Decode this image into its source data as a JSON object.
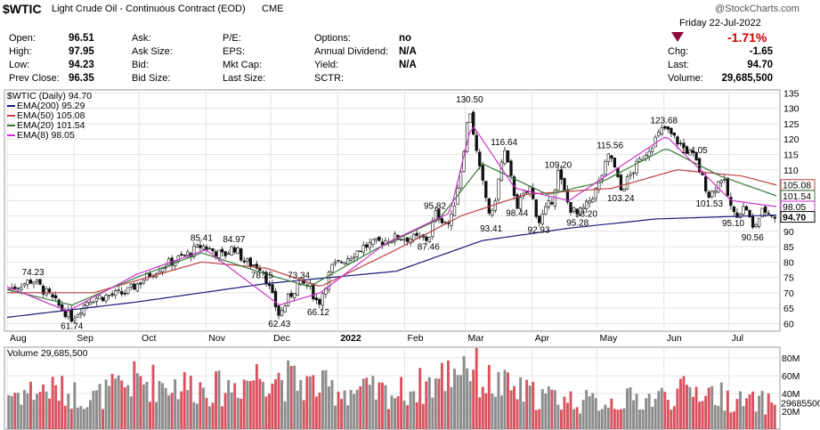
{
  "header": {
    "symbol": "$WTIC",
    "name": "Light Crude Oil - Continuous Contract (EOD)",
    "exchange": "CME",
    "watermark": "@StockCharts.com",
    "date": "Friday 22-Jul-2022",
    "pct_change": "-1.71%",
    "rows": [
      {
        "l1": "Open:",
        "v1": "96.51",
        "l2": "Ask:",
        "v2": "",
        "l3": "P/E:",
        "v3": "",
        "l4": "Options:",
        "v4": "no"
      },
      {
        "l1": "High:",
        "v1": "97.95",
        "l2": "Ask Size:",
        "v2": "",
        "l3": "EPS:",
        "v3": "",
        "l4": "Annual Dividend:",
        "v4": "N/A"
      },
      {
        "l1": "Low:",
        "v1": "94.23",
        "l2": "Bid:",
        "v2": "",
        "l3": "Mkt Cap:",
        "v3": "",
        "l4": "Yield:",
        "v4": "N/A"
      },
      {
        "l1": "Prev Close:",
        "v1": "96.35",
        "l2": "Bid Size:",
        "v2": "",
        "l3": "Last Size:",
        "v3": "",
        "l4": "SCTR:",
        "v4": ""
      }
    ],
    "right_rows": [
      {
        "label": "Chg:",
        "value": "-1.65"
      },
      {
        "label": "Last:",
        "value": "94.70"
      },
      {
        "label": "Volume:",
        "value": "29,685,500"
      }
    ],
    "colors": {
      "down": "#cc0000",
      "up": "#008000"
    }
  },
  "chart_data": [
    {
      "type": "candlestick",
      "title": "$WTIC (Daily) 94.70",
      "legend": [
        {
          "name": "EMA(200) 95.29",
          "color": "#1a1a7a"
        },
        {
          "name": "EMA(50) 105.08",
          "color": "#c04040"
        },
        {
          "name": "EMA(20) 101.54",
          "color": "#3a7a3a"
        },
        {
          "name": "EMA(8) 98.05",
          "color": "#cc33cc"
        }
      ],
      "y_ticks": [
        60,
        65,
        70,
        75,
        80,
        85,
        90,
        95,
        100,
        105,
        110,
        115,
        120,
        125,
        130,
        135
      ],
      "ylim": [
        57.5,
        136
      ],
      "x_months": [
        "Aug",
        "Sep",
        "Oct",
        "Nov",
        "Dec",
        "2022",
        "Feb",
        "Mar",
        "Apr",
        "May",
        "Jun",
        "Jul"
      ],
      "x_month_days": [
        0,
        31,
        61,
        92,
        122,
        153,
        184,
        212,
        243,
        273,
        304,
        334
      ],
      "days_span": 356,
      "close_keypoints": [
        [
          0,
          71
        ],
        [
          12,
          74.23
        ],
        [
          25,
          65
        ],
        [
          30,
          61.74
        ],
        [
          38,
          68
        ],
        [
          55,
          70
        ],
        [
          70,
          78
        ],
        [
          85,
          83
        ],
        [
          90,
          85.41
        ],
        [
          100,
          82
        ],
        [
          105,
          84.97
        ],
        [
          110,
          80
        ],
        [
          118,
          78.25
        ],
        [
          122,
          70
        ],
        [
          126,
          62.43
        ],
        [
          130,
          68
        ],
        [
          135,
          73.34
        ],
        [
          140,
          72
        ],
        [
          144,
          66.12
        ],
        [
          150,
          78
        ],
        [
          165,
          85
        ],
        [
          180,
          88
        ],
        [
          195,
          87.46
        ],
        [
          198,
          95.82
        ],
        [
          205,
          92
        ],
        [
          210,
          110
        ],
        [
          214,
          130.5
        ],
        [
          218,
          112
        ],
        [
          224,
          93.41
        ],
        [
          230,
          116.64
        ],
        [
          236,
          98.44
        ],
        [
          242,
          104
        ],
        [
          246,
          92.93
        ],
        [
          252,
          100
        ],
        [
          255,
          109.2
        ],
        [
          260,
          98
        ],
        [
          264,
          95.28
        ],
        [
          268,
          98.2
        ],
        [
          273,
          104
        ],
        [
          279,
          115.56
        ],
        [
          284,
          103.24
        ],
        [
          290,
          110
        ],
        [
          298,
          118
        ],
        [
          304,
          123.68
        ],
        [
          312,
          118
        ],
        [
          318,
          114.05
        ],
        [
          325,
          101.53
        ],
        [
          331,
          108
        ],
        [
          336,
          95.1
        ],
        [
          342,
          98
        ],
        [
          345,
          90.56
        ],
        [
          350,
          97
        ],
        [
          356,
          94.7
        ]
      ],
      "ema200_keypoints": [
        [
          0,
          62
        ],
        [
          60,
          67
        ],
        [
          120,
          73
        ],
        [
          180,
          77
        ],
        [
          220,
          87
        ],
        [
          260,
          91
        ],
        [
          300,
          94
        ],
        [
          356,
          95.29
        ]
      ],
      "ema50_keypoints": [
        [
          0,
          70
        ],
        [
          40,
          70
        ],
        [
          90,
          80
        ],
        [
          120,
          78
        ],
        [
          145,
          72
        ],
        [
          180,
          84
        ],
        [
          210,
          95
        ],
        [
          240,
          102
        ],
        [
          280,
          104
        ],
        [
          310,
          110
        ],
        [
          340,
          108
        ],
        [
          356,
          105.08
        ]
      ],
      "ema20_keypoints": [
        [
          0,
          71
        ],
        [
          30,
          66
        ],
        [
          60,
          75
        ],
        [
          90,
          83
        ],
        [
          120,
          76
        ],
        [
          140,
          72
        ],
        [
          170,
          84
        ],
        [
          200,
          94
        ],
        [
          220,
          112
        ],
        [
          250,
          102
        ],
        [
          275,
          106
        ],
        [
          305,
          117
        ],
        [
          330,
          108
        ],
        [
          356,
          101.54
        ]
      ],
      "ema8_keypoints": [
        [
          0,
          72
        ],
        [
          28,
          64
        ],
        [
          60,
          76
        ],
        [
          92,
          84
        ],
        [
          126,
          66
        ],
        [
          145,
          70
        ],
        [
          175,
          86
        ],
        [
          205,
          96
        ],
        [
          215,
          125
        ],
        [
          235,
          104
        ],
        [
          260,
          100
        ],
        [
          305,
          121
        ],
        [
          335,
          100
        ],
        [
          356,
          98.05
        ]
      ],
      "annotations": [
        {
          "t": "74.23",
          "d": 12,
          "v": 74.23,
          "pos": "above"
        },
        {
          "t": "61.74",
          "d": 30,
          "v": 61.74,
          "pos": "below"
        },
        {
          "t": "85.41",
          "d": 90,
          "v": 85.41,
          "pos": "above"
        },
        {
          "t": "84.97",
          "d": 105,
          "v": 84.97,
          "pos": "above"
        },
        {
          "t": "78.25",
          "d": 118,
          "v": 78.25,
          "pos": "below"
        },
        {
          "t": "62.43",
          "d": 126,
          "v": 62.43,
          "pos": "below"
        },
        {
          "t": "73.34",
          "d": 135,
          "v": 73.34,
          "pos": "above"
        },
        {
          "t": "66.12",
          "d": 144,
          "v": 66.12,
          "pos": "below"
        },
        {
          "t": "87.46",
          "d": 195,
          "v": 87.46,
          "pos": "below"
        },
        {
          "t": "95.82",
          "d": 198,
          "v": 95.82,
          "pos": "above"
        },
        {
          "t": "130.50",
          "d": 214,
          "v": 130.5,
          "pos": "above"
        },
        {
          "t": "93.41",
          "d": 224,
          "v": 93.41,
          "pos": "below"
        },
        {
          "t": "116.64",
          "d": 230,
          "v": 116.64,
          "pos": "above"
        },
        {
          "t": "98.44",
          "d": 236,
          "v": 98.44,
          "pos": "below"
        },
        {
          "t": "92.93",
          "d": 246,
          "v": 92.93,
          "pos": "below"
        },
        {
          "t": "109.20",
          "d": 255,
          "v": 109.2,
          "pos": "above"
        },
        {
          "t": "95.28",
          "d": 264,
          "v": 95.28,
          "pos": "below"
        },
        {
          "t": "98.20",
          "d": 268,
          "v": 98.2,
          "pos": "below"
        },
        {
          "t": "115.56",
          "d": 279,
          "v": 115.56,
          "pos": "above"
        },
        {
          "t": "103.24",
          "d": 284,
          "v": 103.24,
          "pos": "below"
        },
        {
          "t": "123.68",
          "d": 304,
          "v": 123.68,
          "pos": "above"
        },
        {
          "t": "114.05",
          "d": 318,
          "v": 114.05,
          "pos": "above"
        },
        {
          "t": "101.53",
          "d": 325,
          "v": 101.53,
          "pos": "below"
        },
        {
          "t": "95.10",
          "d": 336,
          "v": 95.1,
          "pos": "below"
        },
        {
          "t": "90.56",
          "d": 345,
          "v": 90.56,
          "pos": "below"
        }
      ],
      "price_tags": [
        {
          "t": "105.08",
          "v": 105.08,
          "color": "#c04040"
        },
        {
          "t": "101.54",
          "v": 101.54,
          "color": "#3a7a3a"
        },
        {
          "t": "98.05",
          "v": 98.05,
          "color": "#cc33cc"
        },
        {
          "t": "94.70",
          "v": 94.7,
          "color": "#000000"
        }
      ]
    },
    {
      "type": "bar",
      "title": "Volume 29,685,500",
      "y_ticks": [
        "80M",
        "60M",
        "40M",
        "20M"
      ],
      "y_tick_values": [
        80,
        60,
        40,
        20
      ],
      "ylim": [
        0,
        92
      ],
      "last_value_tag": "29685500",
      "volume_keypoints": [
        [
          0,
          40
        ],
        [
          20,
          45
        ],
        [
          40,
          35
        ],
        [
          60,
          55
        ],
        [
          80,
          50
        ],
        [
          100,
          45
        ],
        [
          120,
          65
        ],
        [
          130,
          55
        ],
        [
          150,
          45
        ],
        [
          180,
          40
        ],
        [
          200,
          55
        ],
        [
          212,
          80
        ],
        [
          220,
          55
        ],
        [
          240,
          40
        ],
        [
          270,
          30
        ],
        [
          300,
          35
        ],
        [
          320,
          45
        ],
        [
          340,
          30
        ],
        [
          356,
          29.7
        ]
      ]
    }
  ]
}
